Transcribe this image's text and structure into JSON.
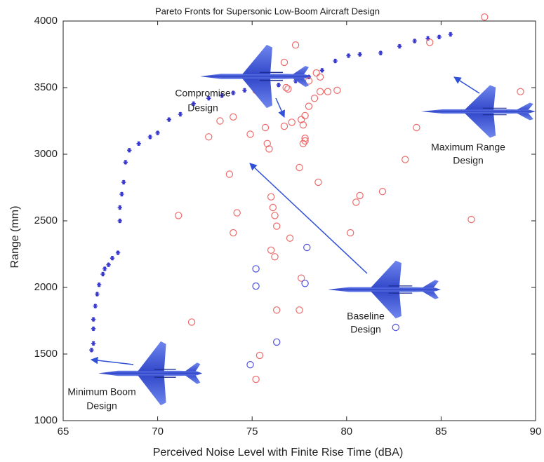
{
  "chart_data": {
    "type": "scatter",
    "title": "Pareto Fronts for Supersonic Low-Boom Aircraft Design",
    "xlabel": "Perceived Noise Level with Finite Rise Time (dBA)",
    "ylabel": "Range (mm)",
    "xlim": [
      65,
      90
    ],
    "ylim": [
      1000,
      4000
    ],
    "xticks": [
      65,
      70,
      75,
      80,
      85,
      90
    ],
    "yticks": [
      1000,
      1500,
      2000,
      2500,
      3000,
      3500,
      4000
    ],
    "grid": false,
    "annotations": [
      [
        "Compromise",
        "Design"
      ],
      [
        "Maximum Range",
        "Design"
      ],
      [
        "Baseline",
        "Design"
      ],
      [
        "Minimum Boom",
        "Design"
      ]
    ],
    "series": [
      {
        "color": "#3838d0",
        "marker": "asterisk",
        "x": [
          66.5,
          66.6,
          66.6,
          66.6,
          66.7,
          66.8,
          66.9,
          67.1,
          67.2,
          67.4,
          67.6,
          67.9,
          68.0,
          68.0,
          68.1,
          68.2,
          68.3,
          68.5,
          69.0,
          69.6,
          70.0,
          70.6,
          71.2,
          71.9,
          72.7,
          73.4,
          74.0,
          74.6,
          75.2,
          75.8,
          76.4,
          77.3,
          78.0,
          78.7,
          79.4,
          80.1,
          80.7,
          81.8,
          82.8,
          83.6,
          84.3,
          84.9,
          85.5
        ],
        "y": [
          1530,
          1580,
          1690,
          1760,
          1860,
          1950,
          2020,
          2100,
          2140,
          2170,
          2220,
          2260,
          2500,
          2600,
          2700,
          2790,
          2940,
          3030,
          3080,
          3130,
          3160,
          3260,
          3300,
          3380,
          3420,
          3440,
          3460,
          3480,
          3470,
          3490,
          3520,
          3550,
          3580,
          3630,
          3700,
          3740,
          3750,
          3760,
          3810,
          3850,
          3870,
          3880,
          3900
        ]
      },
      {
        "color": "#ee6a6a",
        "marker": "circle",
        "x": [
          87.3,
          77.3,
          76.7,
          76.8,
          76.9,
          78.4,
          78.6,
          78.0,
          75.2,
          78.6,
          79.0,
          79.5,
          78.3,
          78.0,
          77.8,
          77.6,
          77.1,
          77.7,
          76.7,
          75.7,
          74.0,
          73.3,
          72.7,
          74.9,
          77.8,
          77.8,
          77.7,
          75.8,
          75.9,
          77.5,
          73.8,
          78.5,
          80.7,
          80.5,
          81.9,
          83.1,
          83.7,
          84.4,
          89.2,
          76.0,
          76.1,
          76.2,
          74.2,
          71.1,
          76.3,
          77.0,
          74.0,
          80.2,
          76.0,
          76.2,
          86.6,
          77.6,
          76.3,
          77.5,
          71.8,
          75.4,
          75.2
        ],
        "y": [
          4030,
          3820,
          3690,
          3500,
          3490,
          3610,
          3580,
          3550,
          3480,
          3470,
          3470,
          3480,
          3420,
          3360,
          3290,
          3260,
          3240,
          3220,
          3210,
          3200,
          3280,
          3250,
          3130,
          3150,
          3120,
          3100,
          3080,
          3080,
          3040,
          2900,
          2850,
          2790,
          2690,
          2640,
          2720,
          2960,
          3200,
          3840,
          3470,
          2680,
          2600,
          2540,
          2560,
          2540,
          2460,
          2370,
          2410,
          2410,
          2280,
          2230,
          2510,
          2070,
          1830,
          1830,
          1740,
          1490,
          1310
        ]
      },
      {
        "color": "#5050dc",
        "marker": "circle",
        "x": [
          77.9,
          75.2,
          75.2,
          77.8,
          74.9,
          76.3,
          82.6
        ],
        "y": [
          2300,
          2140,
          2010,
          2030,
          1420,
          1590,
          1700
        ]
      }
    ]
  }
}
